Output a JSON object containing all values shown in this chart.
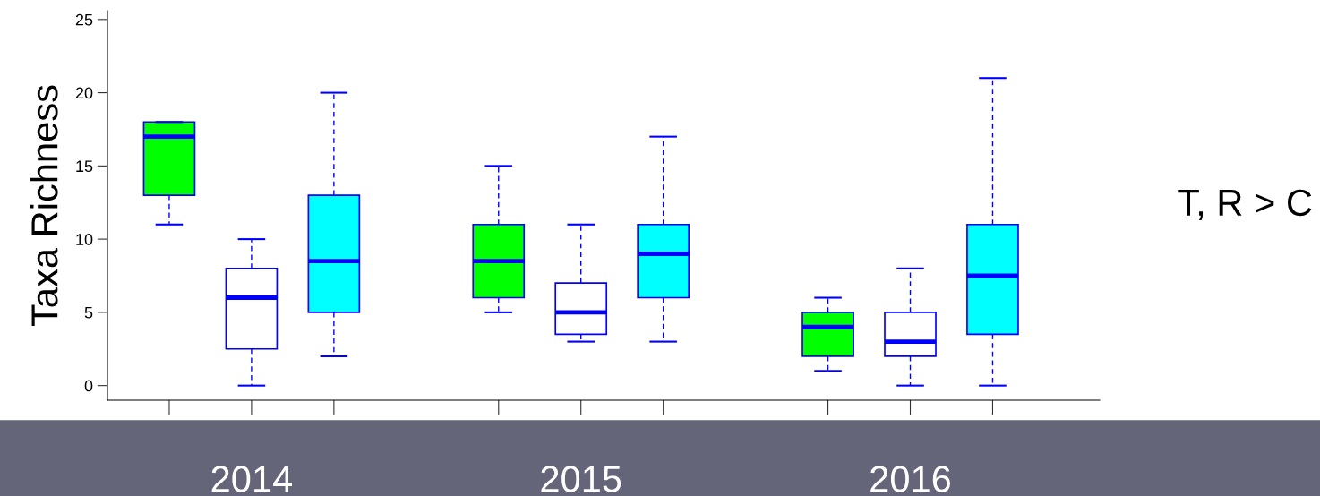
{
  "chart_data": {
    "type": "box",
    "ylabel": "Taxa Richness",
    "categories": [
      null,
      "2014",
      null,
      null,
      null,
      "2015",
      null,
      null,
      null,
      "2016",
      null
    ],
    "ylim": [
      -1,
      25.6
    ],
    "yticks": [
      0,
      5,
      10,
      15,
      20,
      25
    ],
    "grid": false,
    "legend": false,
    "annotations": [
      "T, R > C"
    ],
    "series": [
      {
        "color": "#00ff00",
        "boxes": [
          {
            "low": 11,
            "q1": 13,
            "median": 17,
            "q3": 18,
            "high": 18
          },
          null,
          null,
          null,
          {
            "low": 5,
            "q1": 6,
            "median": 8.5,
            "q3": 11,
            "high": 15
          },
          null,
          null,
          null,
          {
            "low": 1,
            "q1": 2,
            "median": 4,
            "q3": 5,
            "high": 6
          },
          null,
          null
        ]
      },
      {
        "color": "#ffffff",
        "boxes": [
          null,
          {
            "low": 0,
            "q1": 2.5,
            "median": 6,
            "q3": 8,
            "high": 10
          },
          null,
          null,
          null,
          {
            "low": 3,
            "q1": 3.5,
            "median": 5,
            "q3": 7,
            "high": 11
          },
          null,
          null,
          null,
          {
            "low": 0,
            "q1": 2,
            "median": 3,
            "q3": 5,
            "high": 8
          },
          null
        ]
      },
      {
        "color": "#00ffff",
        "boxes": [
          null,
          null,
          {
            "low": 2,
            "q1": 5,
            "median": 8.5,
            "q3": 13,
            "high": 20
          },
          null,
          null,
          null,
          {
            "low": 3,
            "q1": 6,
            "median": 9,
            "q3": 11,
            "high": 17
          },
          null,
          null,
          null,
          {
            "low": 0,
            "q1": 3.5,
            "median": 7.5,
            "q3": 11,
            "high": 21
          }
        ]
      }
    ]
  }
}
